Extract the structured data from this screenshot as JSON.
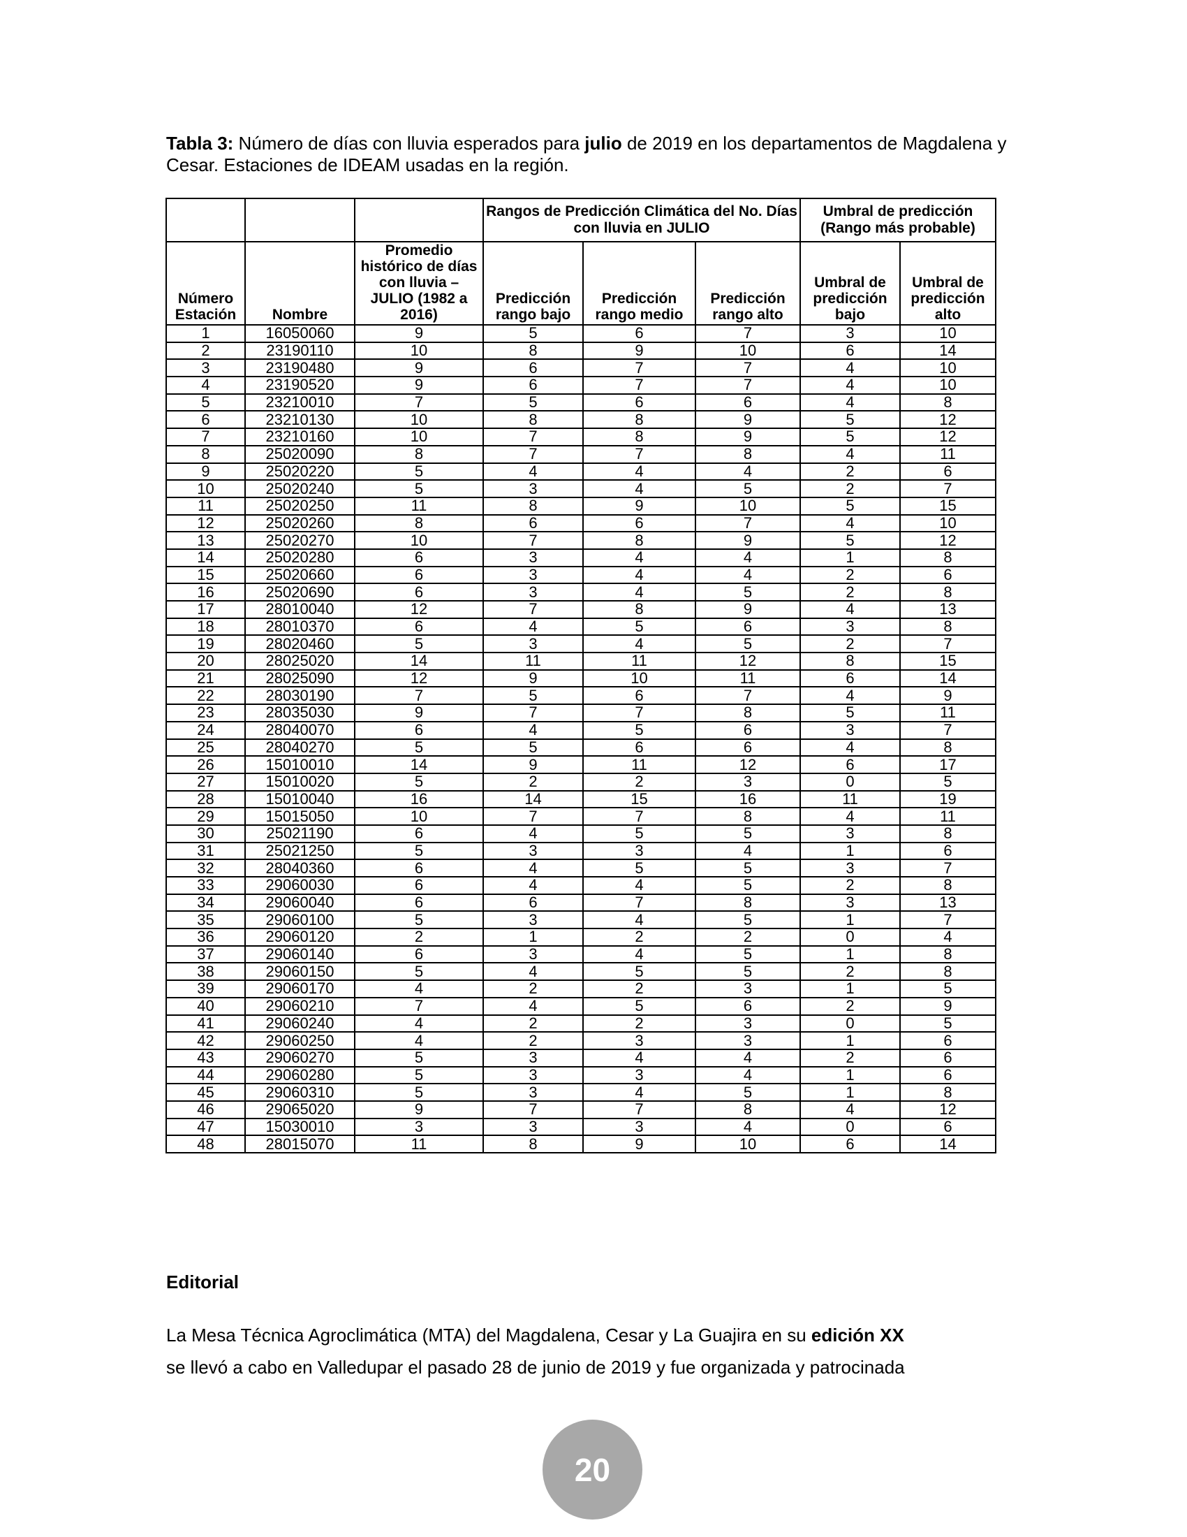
{
  "caption": {
    "bold_label": "Tabla 3:",
    "line1_text": " Número de días con lluvia esperados para ",
    "line1_bold": "julio",
    "line1_rest": " de 2019 en los departamentos de Magdalena y",
    "line2": "Cesar. Estaciones de IDEAM usadas en la región."
  },
  "table": {
    "group_headers": {
      "prediction_ranges": "Rangos de Predicción Climática del No. Días con lluvia en JULIO",
      "prediction_threshold": "Umbral de predicción (Rango más probable)"
    },
    "columns": [
      "Número Estación",
      "Nombre",
      "Promedio histórico de días con lluvia – JULIO (1982 a 2016)",
      "Predicción rango bajo",
      "Predicción rango medio",
      "Predicción rango alto",
      "Umbral de predicción bajo",
      "Umbral de predicción alto"
    ],
    "rows": [
      [
        "1",
        "16050060",
        "9",
        "5",
        "6",
        "7",
        "3",
        "10"
      ],
      [
        "2",
        "23190110",
        "10",
        "8",
        "9",
        "10",
        "6",
        "14"
      ],
      [
        "3",
        "23190480",
        "9",
        "6",
        "7",
        "7",
        "4",
        "10"
      ],
      [
        "4",
        "23190520",
        "9",
        "6",
        "7",
        "7",
        "4",
        "10"
      ],
      [
        "5",
        "23210010",
        "7",
        "5",
        "6",
        "6",
        "4",
        "8"
      ],
      [
        "6",
        "23210130",
        "10",
        "8",
        "8",
        "9",
        "5",
        "12"
      ],
      [
        "7",
        "23210160",
        "10",
        "7",
        "8",
        "9",
        "5",
        "12"
      ],
      [
        "8",
        "25020090",
        "8",
        "7",
        "7",
        "8",
        "4",
        "11"
      ],
      [
        "9",
        "25020220",
        "5",
        "4",
        "4",
        "4",
        "2",
        "6"
      ],
      [
        "10",
        "25020240",
        "5",
        "3",
        "4",
        "5",
        "2",
        "7"
      ],
      [
        "11",
        "25020250",
        "11",
        "8",
        "9",
        "10",
        "5",
        "15"
      ],
      [
        "12",
        "25020260",
        "8",
        "6",
        "6",
        "7",
        "4",
        "10"
      ],
      [
        "13",
        "25020270",
        "10",
        "7",
        "8",
        "9",
        "5",
        "12"
      ],
      [
        "14",
        "25020280",
        "6",
        "3",
        "4",
        "4",
        "1",
        "8"
      ],
      [
        "15",
        "25020660",
        "6",
        "3",
        "4",
        "4",
        "2",
        "6"
      ],
      [
        "16",
        "25020690",
        "6",
        "3",
        "4",
        "5",
        "2",
        "8"
      ],
      [
        "17",
        "28010040",
        "12",
        "7",
        "8",
        "9",
        "4",
        "13"
      ],
      [
        "18",
        "28010370",
        "6",
        "4",
        "5",
        "6",
        "3",
        "8"
      ],
      [
        "19",
        "28020460",
        "5",
        "3",
        "4",
        "5",
        "2",
        "7"
      ],
      [
        "20",
        "28025020",
        "14",
        "11",
        "11",
        "12",
        "8",
        "15"
      ],
      [
        "21",
        "28025090",
        "12",
        "9",
        "10",
        "11",
        "6",
        "14"
      ],
      [
        "22",
        "28030190",
        "7",
        "5",
        "6",
        "7",
        "4",
        "9"
      ],
      [
        "23",
        "28035030",
        "9",
        "7",
        "7",
        "8",
        "5",
        "11"
      ],
      [
        "24",
        "28040070",
        "6",
        "4",
        "5",
        "6",
        "3",
        "7"
      ],
      [
        "25",
        "28040270",
        "5",
        "5",
        "6",
        "6",
        "4",
        "8"
      ],
      [
        "26",
        "15010010",
        "14",
        "9",
        "11",
        "12",
        "6",
        "17"
      ],
      [
        "27",
        "15010020",
        "5",
        "2",
        "2",
        "3",
        "0",
        "5"
      ],
      [
        "28",
        "15010040",
        "16",
        "14",
        "15",
        "16",
        "11",
        "19"
      ],
      [
        "29",
        "15015050",
        "10",
        "7",
        "7",
        "8",
        "4",
        "11"
      ],
      [
        "30",
        "25021190",
        "6",
        "4",
        "5",
        "5",
        "3",
        "8"
      ],
      [
        "31",
        "25021250",
        "5",
        "3",
        "3",
        "4",
        "1",
        "6"
      ],
      [
        "32",
        "28040360",
        "6",
        "4",
        "5",
        "5",
        "3",
        "7"
      ],
      [
        "33",
        "29060030",
        "6",
        "4",
        "4",
        "5",
        "2",
        "8"
      ],
      [
        "34",
        "29060040",
        "6",
        "6",
        "7",
        "8",
        "3",
        "13"
      ],
      [
        "35",
        "29060100",
        "5",
        "3",
        "4",
        "5",
        "1",
        "7"
      ],
      [
        "36",
        "29060120",
        "2",
        "1",
        "2",
        "2",
        "0",
        "4"
      ],
      [
        "37",
        "29060140",
        "6",
        "3",
        "4",
        "5",
        "1",
        "8"
      ],
      [
        "38",
        "29060150",
        "5",
        "4",
        "5",
        "5",
        "2",
        "8"
      ],
      [
        "39",
        "29060170",
        "4",
        "2",
        "2",
        "3",
        "1",
        "5"
      ],
      [
        "40",
        "29060210",
        "7",
        "4",
        "5",
        "6",
        "2",
        "9"
      ],
      [
        "41",
        "29060240",
        "4",
        "2",
        "2",
        "3",
        "0",
        "5"
      ],
      [
        "42",
        "29060250",
        "4",
        "2",
        "3",
        "3",
        "1",
        "6"
      ],
      [
        "43",
        "29060270",
        "5",
        "3",
        "4",
        "4",
        "2",
        "6"
      ],
      [
        "44",
        "29060280",
        "5",
        "3",
        "3",
        "4",
        "1",
        "6"
      ],
      [
        "45",
        "29060310",
        "5",
        "3",
        "4",
        "5",
        "1",
        "8"
      ],
      [
        "46",
        "29065020",
        "9",
        "7",
        "7",
        "8",
        "4",
        "12"
      ],
      [
        "47",
        "15030010",
        "3",
        "3",
        "3",
        "4",
        "0",
        "6"
      ],
      [
        "48",
        "28015070",
        "11",
        "8",
        "9",
        "10",
        "6",
        "14"
      ]
    ]
  },
  "editorial": {
    "heading": "Editorial",
    "line1_text": "La Mesa Técnica Agroclimática (MTA) del Magdalena, Cesar y La Guajira en su ",
    "line1_bold": "edición XX",
    "line2_text": "se llevó a cabo en Valledupar el pasado 28 de junio de 2019 y fue organizada y patrocinada"
  },
  "page": {
    "number": "20"
  }
}
